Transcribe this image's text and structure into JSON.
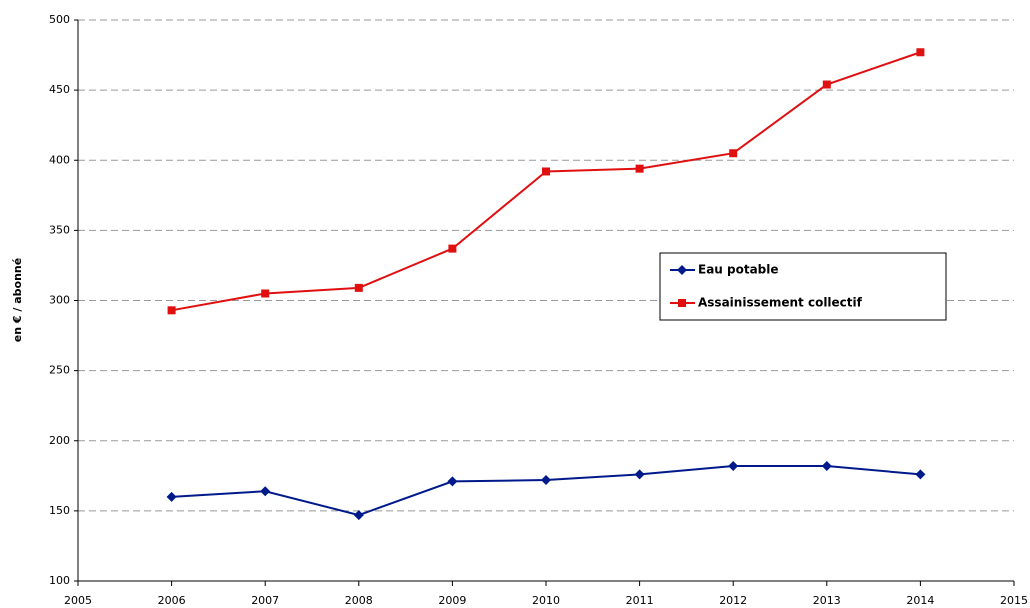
{
  "chart_data": {
    "type": "line",
    "y_label": "en € / abonné",
    "x": [
      2006,
      2007,
      2008,
      2009,
      2010,
      2011,
      2012,
      2013,
      2014
    ],
    "series": [
      {
        "name": "Eau potable",
        "color": "#001a8c",
        "marker": "diamond",
        "values": [
          160,
          164,
          147,
          171,
          172,
          176,
          182,
          182,
          176
        ]
      },
      {
        "name": "Assainissement collectif",
        "color": "#e01010",
        "marker": "square",
        "values": [
          293,
          305,
          309,
          337,
          392,
          394,
          405,
          454,
          477
        ]
      }
    ],
    "xlim": [
      2005,
      2015
    ],
    "xticks": [
      2005,
      2006,
      2007,
      2008,
      2009,
      2010,
      2011,
      2012,
      2013,
      2014,
      2015
    ],
    "ylim": [
      100,
      500
    ],
    "yticks": [
      100,
      150,
      200,
      250,
      300,
      350,
      400,
      450,
      500
    ],
    "grid": true,
    "legend": "right"
  }
}
